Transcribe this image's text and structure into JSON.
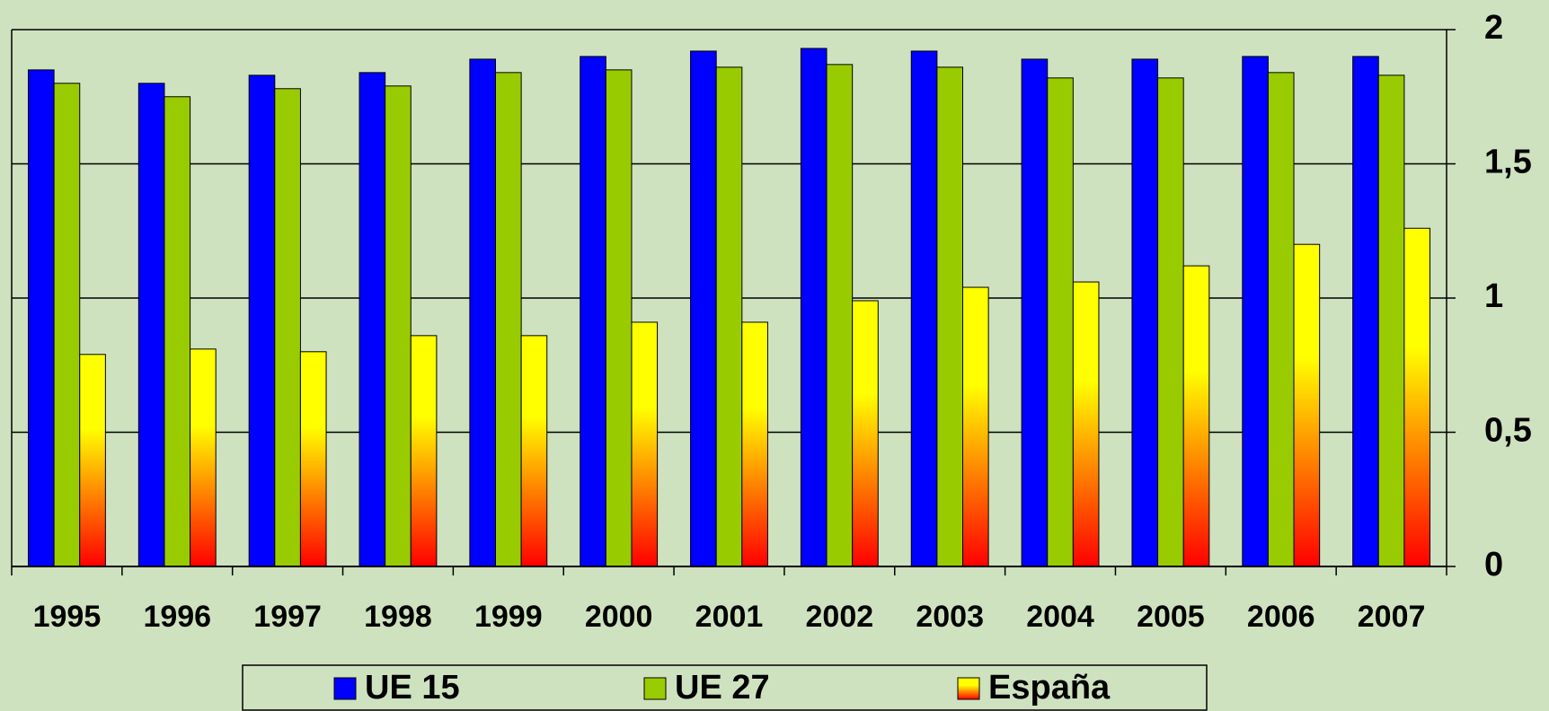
{
  "chart_data": {
    "type": "bar",
    "categories": [
      "1995",
      "1996",
      "1997",
      "1998",
      "1999",
      "2000",
      "2001",
      "2002",
      "2003",
      "2004",
      "2005",
      "2006",
      "2007"
    ],
    "series": [
      {
        "name": "UE 15",
        "color": "#0000ff",
        "values": [
          1.85,
          1.8,
          1.83,
          1.84,
          1.89,
          1.9,
          1.92,
          1.93,
          1.92,
          1.89,
          1.89,
          1.9,
          1.9
        ]
      },
      {
        "name": "UE 27",
        "color": "#99cc00",
        "values": [
          1.8,
          1.75,
          1.78,
          1.79,
          1.84,
          1.85,
          1.86,
          1.87,
          1.86,
          1.82,
          1.82,
          1.84,
          1.83
        ]
      },
      {
        "name": "España",
        "color": "#ffff00",
        "gradient_end": "#ff0000",
        "values": [
          0.79,
          0.81,
          0.8,
          0.86,
          0.86,
          0.91,
          0.91,
          0.99,
          1.04,
          1.06,
          1.12,
          1.2,
          1.26
        ]
      }
    ],
    "ylim": [
      0,
      2
    ],
    "yticks": [
      0,
      {
        "value": 0.5,
        "label": "0,5"
      },
      1,
      {
        "value": 1.5,
        "label": "1,5"
      },
      2
    ],
    "grid": true,
    "y_axis_side": "right",
    "legend": "bottom"
  }
}
